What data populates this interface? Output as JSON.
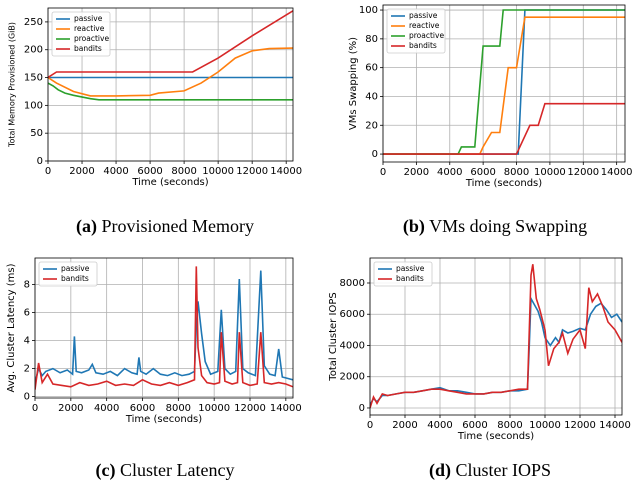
{
  "chart_data": [
    {
      "type": "line",
      "xlabel": "Time (seconds)",
      "ylabel": "Total Memory Provisioned (GiB)",
      "xlim": [
        0,
        14400
      ],
      "xticks": [
        0,
        2000,
        4000,
        6000,
        8000,
        10000,
        12000,
        14000
      ],
      "ylim": [
        0,
        275
      ],
      "yticks": [
        0,
        50,
        100,
        150,
        200,
        250
      ],
      "grid": true,
      "legend": "upper left",
      "caption_tag": "(a)",
      "caption": "Provisioned Memory",
      "series": [
        {
          "name": "passive",
          "color": "#1f77b4",
          "x": [
            0,
            14400
          ],
          "values": [
            150,
            150
          ]
        },
        {
          "name": "reactive",
          "color": "#ff7f0e",
          "x": [
            0,
            500,
            1500,
            2500,
            4000,
            6000,
            6500,
            8000,
            9000,
            10000,
            11000,
            12000,
            13000,
            14400
          ],
          "values": [
            150,
            140,
            125,
            117,
            117,
            118,
            122,
            126,
            140,
            160,
            185,
            198,
            202,
            203
          ]
        },
        {
          "name": "proactive",
          "color": "#2ca02c",
          "x": [
            0,
            300,
            600,
            1000,
            1500,
            2500,
            3000,
            14400
          ],
          "values": [
            140,
            135,
            128,
            122,
            118,
            112,
            110,
            110
          ]
        },
        {
          "name": "bandits",
          "color": "#d62728",
          "x": [
            0,
            500,
            8500,
            10000,
            12000,
            14400
          ],
          "values": [
            150,
            160,
            160,
            185,
            225,
            270
          ]
        }
      ]
    },
    {
      "type": "line",
      "xlabel": "Time (seconds)",
      "ylabel": "VMs Swapping (%)",
      "xlim": [
        0,
        14500
      ],
      "xticks": [
        0,
        2000,
        4000,
        6000,
        8000,
        10000,
        12000,
        14000
      ],
      "ylim": [
        -5.5,
        103.5
      ],
      "yticks": [
        0,
        20,
        40,
        60,
        80,
        100
      ],
      "grid": true,
      "legend": "upper left",
      "caption_tag": "(b)",
      "caption": "VMs doing Swapping",
      "series": [
        {
          "name": "passive",
          "color": "#1f77b4",
          "x": [
            0,
            8100,
            8500,
            14500
          ],
          "values": [
            0,
            0,
            100,
            100
          ]
        },
        {
          "name": "reactive",
          "color": "#ff7f0e",
          "x": [
            0,
            5800,
            6000,
            6500,
            7000,
            7500,
            8000,
            8500,
            14500
          ],
          "values": [
            0,
            0,
            5,
            15,
            15,
            60,
            60,
            95,
            95
          ]
        },
        {
          "name": "proactive",
          "color": "#2ca02c",
          "x": [
            0,
            4500,
            4700,
            5500,
            6000,
            7000,
            7200,
            14500
          ],
          "values": [
            0,
            0,
            5,
            5,
            75,
            75,
            100,
            100
          ]
        },
        {
          "name": "bandits",
          "color": "#d62728",
          "x": [
            0,
            8000,
            8800,
            9300,
            9700,
            14500
          ],
          "values": [
            0,
            0,
            20,
            20,
            35,
            35
          ]
        }
      ]
    },
    {
      "type": "line",
      "xlabel": "Time (seconds)",
      "ylabel": "Avg. Cluster Latency (ms)",
      "xlim": [
        0,
        14400
      ],
      "xticks": [
        0,
        2000,
        4000,
        6000,
        8000,
        10000,
        12000,
        14000
      ],
      "ylim": [
        -0.1,
        9.9
      ],
      "yticks": [
        0,
        2,
        4,
        6,
        8
      ],
      "grid": true,
      "legend": "upper left",
      "caption_tag": "(c)",
      "caption": "Cluster Latency",
      "series": [
        {
          "name": "passive",
          "color": "#1f77b4",
          "x": [
            0,
            200,
            400,
            600,
            1000,
            1400,
            1800,
            2100,
            2200,
            2300,
            2600,
            3000,
            3200,
            3400,
            3800,
            4200,
            4600,
            5000,
            5400,
            5700,
            5800,
            5900,
            6200,
            6600,
            7000,
            7400,
            7800,
            8200,
            8600,
            8900,
            9000,
            9100,
            9300,
            9500,
            9800,
            10200,
            10400,
            10600,
            10900,
            11200,
            11400,
            11600,
            11900,
            12300,
            12600,
            12800,
            13100,
            13400,
            13600,
            13800,
            14100,
            14400
          ],
          "values": [
            1.0,
            2.0,
            1.5,
            1.8,
            2.0,
            1.7,
            1.9,
            1.6,
            4.3,
            1.8,
            1.7,
            1.9,
            2.3,
            1.7,
            1.6,
            1.8,
            1.5,
            2.0,
            1.7,
            1.6,
            2.8,
            1.8,
            1.6,
            2.0,
            1.6,
            1.5,
            1.7,
            1.5,
            1.6,
            1.8,
            5.0,
            6.8,
            4.5,
            2.5,
            1.6,
            1.8,
            6.2,
            2.0,
            1.6,
            1.8,
            8.4,
            2.0,
            1.7,
            1.5,
            9.0,
            2.2,
            1.6,
            1.5,
            3.4,
            1.4,
            1.3,
            1.2
          ]
        },
        {
          "name": "bandits",
          "color": "#d62728",
          "x": [
            0,
            200,
            400,
            700,
            1000,
            1500,
            2000,
            2500,
            3000,
            3500,
            4000,
            4500,
            5000,
            5500,
            6000,
            6500,
            7000,
            7500,
            8000,
            8500,
            8900,
            9000,
            9100,
            9300,
            9600,
            10000,
            10300,
            10400,
            10600,
            11000,
            11300,
            11400,
            11600,
            12000,
            12400,
            12600,
            12800,
            13200,
            13600,
            14000,
            14400
          ],
          "values": [
            0.5,
            2.4,
            1.0,
            1.6,
            0.9,
            0.8,
            0.7,
            1.0,
            0.8,
            0.9,
            1.1,
            0.8,
            0.9,
            0.8,
            1.2,
            0.9,
            0.8,
            1.0,
            0.8,
            1.0,
            1.2,
            9.3,
            3.5,
            1.5,
            1.0,
            0.9,
            1.0,
            4.6,
            1.1,
            0.9,
            1.0,
            4.6,
            1.0,
            0.8,
            0.9,
            4.6,
            1.0,
            0.9,
            1.0,
            0.9,
            0.7
          ]
        }
      ]
    },
    {
      "type": "line",
      "xlabel": "Time (seconds)",
      "ylabel": "Total Cluster IOPS",
      "xlim": [
        0,
        14400
      ],
      "xticks": [
        0,
        2000,
        4000,
        6000,
        8000,
        10000,
        12000,
        14000
      ],
      "ylim": [
        -450,
        9600
      ],
      "yticks": [
        0,
        2000,
        4000,
        6000,
        8000
      ],
      "grid": true,
      "legend": "upper left",
      "caption_tag": "(d)",
      "caption": "Cluster IOPS",
      "series": [
        {
          "name": "passive",
          "color": "#1f77b4",
          "x": [
            0,
            200,
            400,
            700,
            1000,
            1500,
            2000,
            2500,
            3000,
            3500,
            4000,
            4500,
            5000,
            5500,
            6000,
            6500,
            7000,
            7500,
            8000,
            8500,
            9000,
            9100,
            9200,
            9400,
            9600,
            9800,
            10000,
            10300,
            10600,
            10800,
            11000,
            11300,
            11600,
            12000,
            12300,
            12600,
            12900,
            13200,
            13500,
            13800,
            14100,
            14400
          ],
          "values": [
            200,
            600,
            400,
            800,
            800,
            900,
            1000,
            1000,
            1100,
            1200,
            1300,
            1100,
            1100,
            1000,
            900,
            900,
            1000,
            1000,
            1100,
            1100,
            1200,
            4000,
            7000,
            6600,
            6200,
            5500,
            4500,
            4000,
            4500,
            4200,
            5000,
            4800,
            4900,
            5100,
            5000,
            6000,
            6500,
            6700,
            6300,
            5800,
            6000,
            5500
          ]
        },
        {
          "name": "bandits",
          "color": "#d62728",
          "x": [
            0,
            200,
            400,
            700,
            1000,
            1500,
            2000,
            2500,
            3000,
            3500,
            4000,
            4500,
            5000,
            5500,
            6000,
            6500,
            7000,
            7500,
            8000,
            8500,
            9000,
            9100,
            9200,
            9300,
            9500,
            9700,
            10000,
            10200,
            10500,
            10800,
            11000,
            11300,
            11600,
            12000,
            12300,
            12500,
            12700,
            13000,
            13300,
            13600,
            14000,
            14400
          ],
          "values": [
            0,
            700,
            300,
            900,
            800,
            900,
            1000,
            1000,
            1100,
            1200,
            1200,
            1100,
            1000,
            900,
            900,
            900,
            1000,
            1000,
            1100,
            1200,
            1200,
            5000,
            8500,
            9200,
            7000,
            6300,
            5000,
            2700,
            3800,
            4200,
            4800,
            3500,
            4400,
            5000,
            3800,
            7700,
            6800,
            7300,
            6500,
            5500,
            5000,
            4200
          ]
        }
      ]
    }
  ]
}
